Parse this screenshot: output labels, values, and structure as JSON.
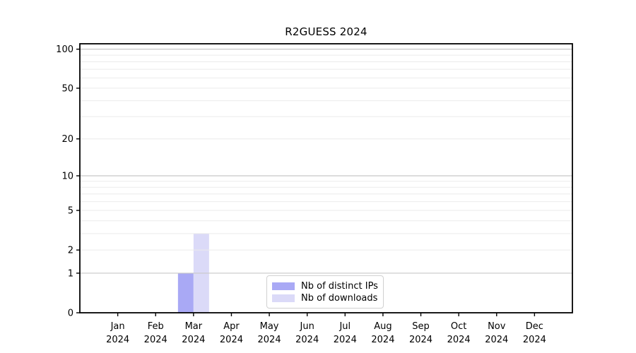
{
  "title": "R2GUESS 2024",
  "legend": {
    "items": [
      {
        "label": "Nb of distinct IPs",
        "color": "#a9a9f5"
      },
      {
        "label": "Nb of downloads",
        "color": "#dbdaf8"
      }
    ]
  },
  "colors": {
    "background": "#ffffff",
    "axis": "#000000",
    "text": "#000000",
    "grid_major": "#c8c8c8",
    "grid_minor": "#ebebeb",
    "bar_distinct_ips": "#a9a9f5",
    "bar_downloads": "#dbdaf8",
    "legend_border": "#d0d0d0"
  },
  "chart_data": {
    "type": "bar",
    "title": "R2GUESS 2024",
    "categories": [
      "Jan 2024",
      "Feb 2024",
      "Mar 2024",
      "Apr 2024",
      "May 2024",
      "Jun 2024",
      "Jul 2024",
      "Aug 2024",
      "Sep 2024",
      "Oct 2024",
      "Nov 2024",
      "Dec 2024"
    ],
    "series": [
      {
        "name": "Nb of distinct IPs",
        "values": [
          0,
          0,
          1,
          0,
          0,
          0,
          0,
          0,
          0,
          0,
          0,
          0
        ]
      },
      {
        "name": "Nb of downloads",
        "values": [
          0,
          0,
          3,
          0,
          0,
          0,
          0,
          0,
          0,
          0,
          0,
          0
        ]
      }
    ],
    "xlabel": "",
    "ylabel": "",
    "yscale": "log1p",
    "yticks": [
      0,
      1,
      2,
      5,
      10,
      20,
      50,
      100
    ],
    "ytick_labels": [
      "0",
      "1",
      "2",
      "5",
      "10",
      "20",
      "50",
      "100"
    ],
    "grid_major_values": [
      1,
      10,
      100
    ],
    "grid_minor_values": [
      2,
      3,
      4,
      5,
      6,
      7,
      8,
      9,
      20,
      30,
      40,
      50,
      60,
      70,
      80,
      90
    ],
    "ylim": [
      0,
      110
    ],
    "grid": "horizontal",
    "legend_position": "lower center"
  }
}
